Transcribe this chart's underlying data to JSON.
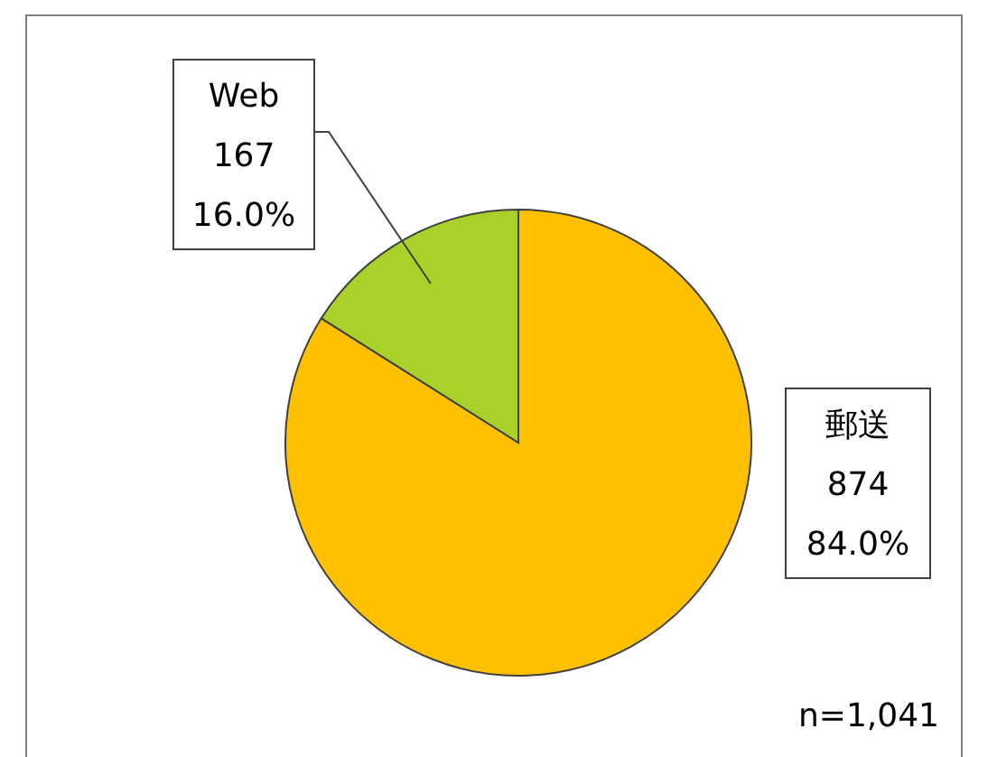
{
  "chart_data": {
    "type": "pie",
    "categories": [
      "郵送",
      "Web"
    ],
    "values": [
      874,
      167
    ],
    "colors": [
      "#ffc000",
      "#a9d12a"
    ],
    "value_labels": [
      "874\n84.0%",
      "167\n16.0%"
    ],
    "annotations": [
      "n=1,041"
    ]
  }
}
